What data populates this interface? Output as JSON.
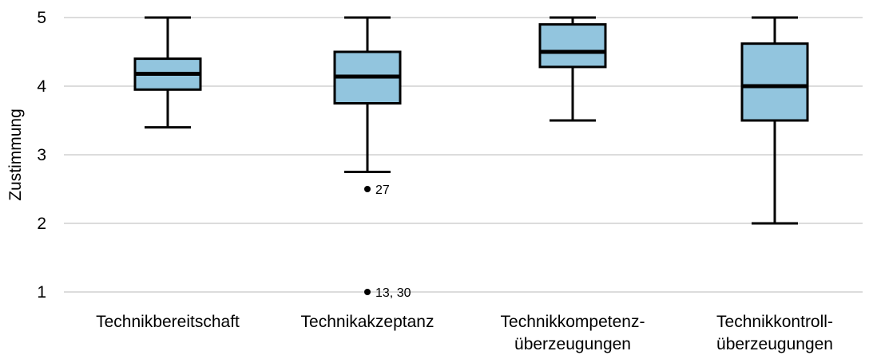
{
  "chart_data": {
    "type": "boxplot",
    "ylabel": "Zustimmung",
    "ylim": [
      1,
      5
    ],
    "yticks": [
      1,
      2,
      3,
      4,
      5
    ],
    "grid": true,
    "colors": {
      "box_fill": "#92c5de",
      "stroke": "#000000",
      "grid": "#d0d0d0"
    },
    "categories": [
      [
        "Technikbereitschaft"
      ],
      [
        "Technikakzeptanz"
      ],
      [
        "Technikkompetenz-",
        "überzeugungen"
      ],
      [
        "Technikkontroll-",
        "überzeugungen"
      ]
    ],
    "boxes": [
      {
        "min": 3.4,
        "q1": 3.95,
        "median": 4.18,
        "q3": 4.4,
        "max": 5.0,
        "outliers": []
      },
      {
        "min": 2.75,
        "q1": 3.75,
        "median": 4.14,
        "q3": 4.5,
        "max": 5.0,
        "outliers": [
          {
            "value": 2.5,
            "label": "27"
          },
          {
            "value": 1.0,
            "label": "13, 30"
          }
        ]
      },
      {
        "min": 3.5,
        "q1": 4.28,
        "median": 4.5,
        "q3": 4.9,
        "max": 5.0,
        "outliers": []
      },
      {
        "min": 2.0,
        "q1": 3.5,
        "median": 4.0,
        "q3": 4.62,
        "max": 5.0,
        "outliers": []
      }
    ]
  }
}
